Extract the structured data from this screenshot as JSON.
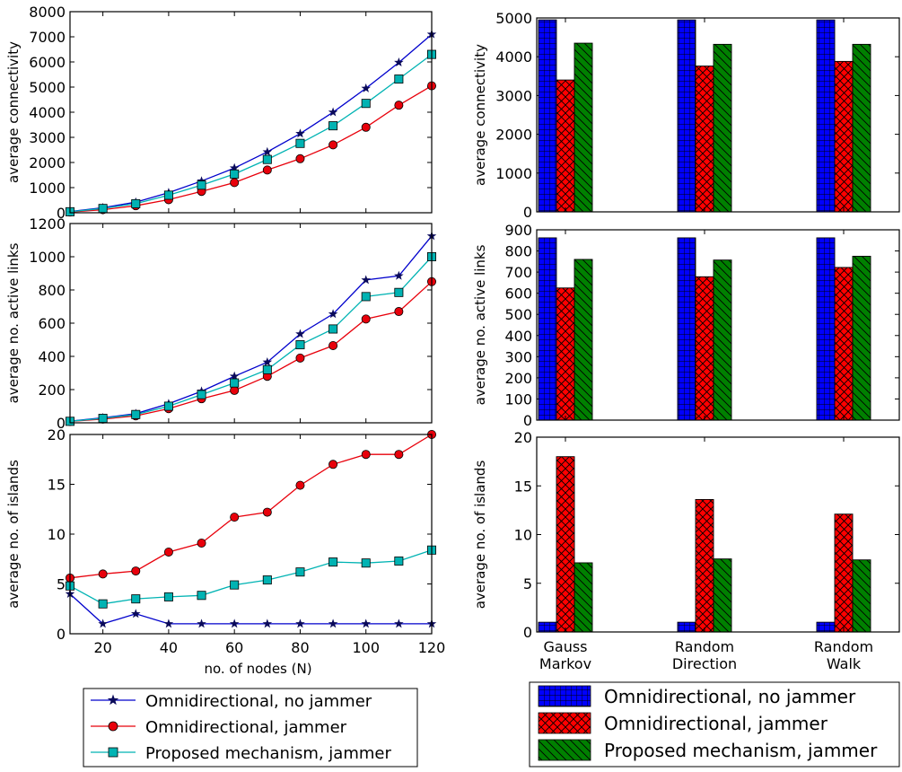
{
  "colors": {
    "no_jammer": "#0000cc",
    "jammer": "#e8000b",
    "proposed": "#00b3b3",
    "bar_blue": "#0000ff",
    "bar_red": "#ff0000",
    "bar_green": "#008000"
  },
  "chart_data": [
    {
      "id": "line-connectivity",
      "type": "line",
      "title": "",
      "xlabel": "",
      "ylabel": "average connectivity",
      "xlim": [
        10,
        120
      ],
      "ylim": [
        0,
        8000
      ],
      "yticks": [
        0,
        1000,
        2000,
        3000,
        4000,
        5000,
        6000,
        7000,
        8000
      ],
      "x": [
        10,
        20,
        30,
        40,
        50,
        60,
        70,
        80,
        90,
        100,
        110,
        120
      ],
      "series": [
        {
          "name": "Omnidirectional, no jammer",
          "values": [
            45,
            200,
            420,
            800,
            1260,
            1780,
            2420,
            3150,
            4000,
            4950,
            5980,
            7100
          ]
        },
        {
          "name": "Omnidirectional, jammer",
          "values": [
            30,
            120,
            280,
            520,
            850,
            1200,
            1700,
            2150,
            2700,
            3400,
            4280,
            5050
          ]
        },
        {
          "name": "Proposed mechanism, jammer",
          "values": [
            40,
            170,
            360,
            700,
            1100,
            1540,
            2120,
            2760,
            3460,
            4350,
            5320,
            6300
          ]
        }
      ]
    },
    {
      "id": "line-links",
      "type": "line",
      "title": "",
      "xlabel": "",
      "ylabel": "average no. active links",
      "xlim": [
        10,
        120
      ],
      "ylim": [
        0,
        1200
      ],
      "yticks": [
        0,
        200,
        400,
        600,
        800,
        1000,
        1200
      ],
      "x": [
        10,
        20,
        30,
        40,
        50,
        60,
        70,
        80,
        90,
        100,
        110,
        120
      ],
      "series": [
        {
          "name": "Omnidirectional, no jammer",
          "values": [
            10,
            30,
            55,
            115,
            190,
            280,
            365,
            535,
            655,
            860,
            885,
            1125
          ]
        },
        {
          "name": "Omnidirectional, jammer",
          "values": [
            8,
            22,
            42,
            85,
            145,
            195,
            280,
            390,
            465,
            625,
            670,
            850
          ]
        },
        {
          "name": "Proposed mechanism, jammer",
          "values": [
            9,
            27,
            50,
            100,
            170,
            240,
            320,
            470,
            565,
            760,
            785,
            1000
          ]
        }
      ]
    },
    {
      "id": "line-islands",
      "type": "line",
      "title": "",
      "xlabel": "no. of nodes (N)",
      "ylabel": "average no. of islands",
      "xlim": [
        10,
        120
      ],
      "ylim": [
        0,
        20
      ],
      "yticks": [
        0,
        5,
        10,
        15,
        20
      ],
      "xticks": [
        20,
        40,
        60,
        80,
        100,
        120
      ],
      "x": [
        10,
        20,
        30,
        40,
        50,
        60,
        70,
        80,
        90,
        100,
        110,
        120
      ],
      "series": [
        {
          "name": "Omnidirectional, no jammer",
          "values": [
            4.0,
            1.0,
            2.0,
            1.0,
            1.0,
            1.0,
            1.0,
            1.0,
            1.0,
            1.0,
            1.0,
            1.0
          ]
        },
        {
          "name": "Omnidirectional, jammer",
          "values": [
            5.6,
            6.0,
            6.3,
            8.2,
            9.1,
            11.7,
            12.2,
            14.9,
            17.0,
            18.0,
            18.0,
            20.0
          ]
        },
        {
          "name": "Proposed mechanism, jammer",
          "values": [
            4.8,
            3.0,
            3.5,
            3.7,
            3.85,
            4.9,
            5.4,
            6.2,
            7.2,
            7.1,
            7.3,
            8.4
          ]
        }
      ]
    },
    {
      "id": "bar-connectivity",
      "type": "bar",
      "title": "",
      "xlabel": "",
      "ylabel": "average connectivity",
      "ylim": [
        0,
        5000
      ],
      "yticks": [
        0,
        1000,
        2000,
        3000,
        4000,
        5000
      ],
      "categories": [
        "Gauss Markov",
        "Random Direction",
        "Random Walk"
      ],
      "series": [
        {
          "name": "Omnidirectional, no jammer",
          "values": [
            4950,
            4950,
            4950
          ]
        },
        {
          "name": "Omnidirectional, jammer",
          "values": [
            3400,
            3760,
            3880
          ]
        },
        {
          "name": "Proposed mechanism, jammer",
          "values": [
            4350,
            4320,
            4320
          ]
        }
      ]
    },
    {
      "id": "bar-links",
      "type": "bar",
      "title": "",
      "xlabel": "",
      "ylabel": "average no. active links",
      "ylim": [
        0,
        900
      ],
      "yticks": [
        0,
        100,
        200,
        300,
        400,
        500,
        600,
        700,
        800,
        900
      ],
      "categories": [
        "Gauss Markov",
        "Random Direction",
        "Random Walk"
      ],
      "series": [
        {
          "name": "Omnidirectional, no jammer",
          "values": [
            862,
            862,
            862
          ]
        },
        {
          "name": "Omnidirectional, jammer",
          "values": [
            625,
            678,
            722
          ]
        },
        {
          "name": "Proposed mechanism, jammer",
          "values": [
            760,
            757,
            775
          ]
        }
      ]
    },
    {
      "id": "bar-islands",
      "type": "bar",
      "title": "",
      "xlabel": "",
      "ylabel": "average no. of islands",
      "ylim": [
        0,
        20
      ],
      "yticks": [
        0,
        5,
        10,
        15,
        20
      ],
      "categories": [
        "Gauss Markov",
        "Random Direction",
        "Random Walk"
      ],
      "category_lines": [
        [
          "Gauss",
          "Markov"
        ],
        [
          "Random",
          "Direction"
        ],
        [
          "Random",
          "Walk"
        ]
      ],
      "series": [
        {
          "name": "Omnidirectional, no jammer",
          "values": [
            1.0,
            1.0,
            1.0
          ]
        },
        {
          "name": "Omnidirectional, jammer",
          "values": [
            18.0,
            13.6,
            12.1
          ]
        },
        {
          "name": "Proposed mechanism, jammer",
          "values": [
            7.1,
            7.5,
            7.4
          ]
        }
      ]
    }
  ],
  "legend_left": {
    "items": [
      {
        "label": "Omnidirectional, no jammer"
      },
      {
        "label": "Omnidirectional, jammer"
      },
      {
        "label": "Proposed mechanism, jammer"
      }
    ]
  },
  "legend_right": {
    "items": [
      {
        "label": "Omnidirectional, no jammer"
      },
      {
        "label": "Omnidirectional, jammer"
      },
      {
        "label": "Proposed mechanism, jammer"
      }
    ]
  }
}
